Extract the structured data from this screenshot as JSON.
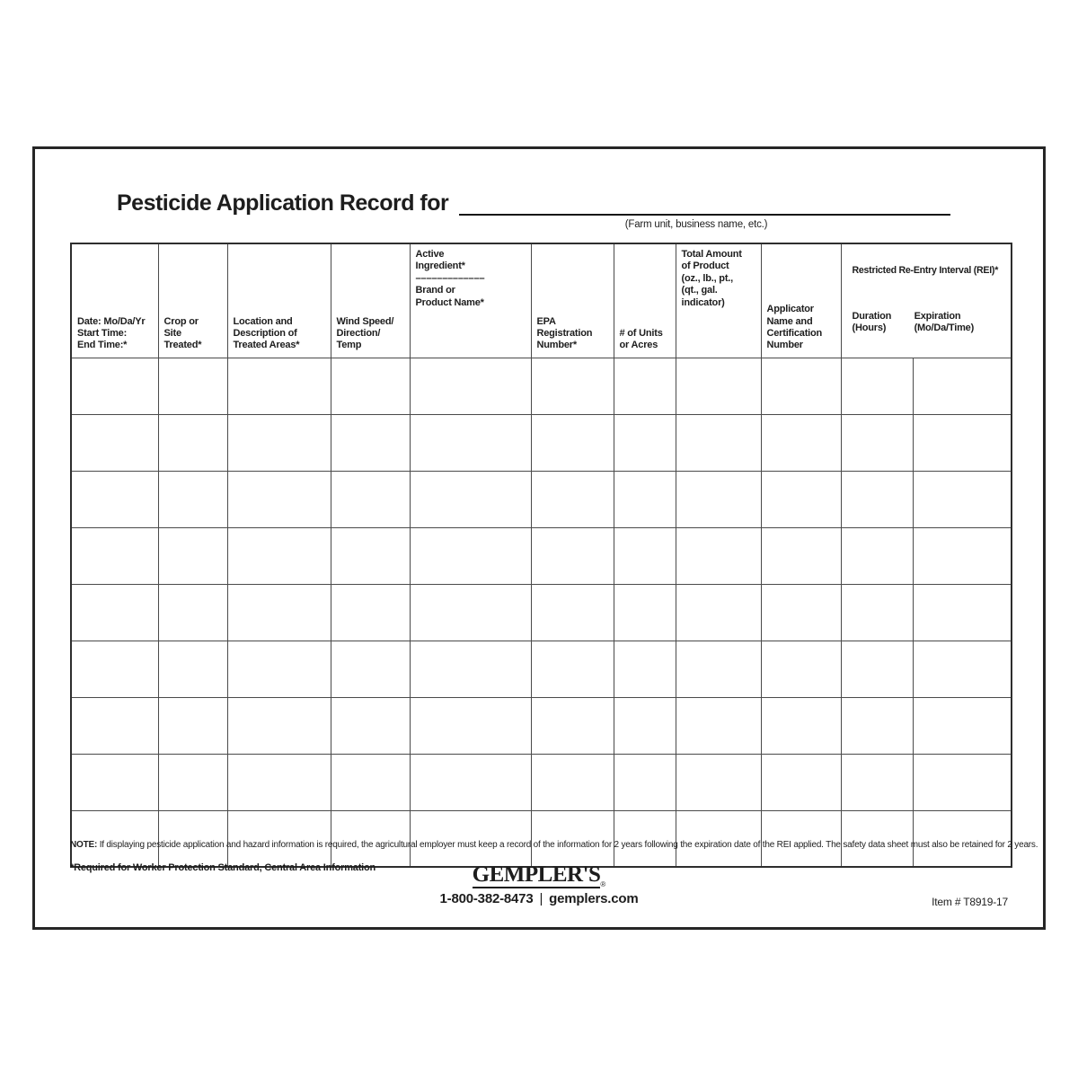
{
  "page": {
    "title": "Pesticide Application Record for",
    "blank_caption": "(Farm unit, business name, etc.)"
  },
  "table": {
    "headers": {
      "date": "Date: Mo/Da/Yr\nStart Time:\nEnd Time:*",
      "crop": "Crop or\nSite Treated*",
      "location": "Location and\nDescription of\nTreated Areas*",
      "wind": "Wind Speed/\nDirection/\nTemp",
      "active_ingredient": "Active\nIngredient*\n–––––––––––––\nBrand or\nProduct Name*",
      "epa": "EPA\nRegistration\nNumber*",
      "units": "# of Units\nor Acres",
      "total_amount": "Total Amount\nof Product\n(oz., lb., pt.,\n(qt., gal.\nindicator)",
      "applicator": "Applicator\nName and\nCertification\nNumber",
      "rei_group": "Restricted Re-Entry Interval (REI)*",
      "rei_duration": "Duration\n(Hours)",
      "rei_expiration": "Expiration\n(Mo/Da/Time)"
    },
    "body": {
      "row_count": 9,
      "column_count": 11
    }
  },
  "footer": {
    "note_label": "NOTE:",
    "note_text": " If displaying pesticide application and hazard information is required, the agricultural employer must keep a record of the information for 2 years following the expiration date of the REI applied. The safety data sheet must also be retained for 2 years.",
    "required_note": "*Required for Worker Protection Standard, Central Area Information",
    "brand": "GEMPLER'S",
    "brand_reg": "®",
    "phone": "1-800-382-8473",
    "separator": "|",
    "website": "gemplers.com",
    "item_number": "Item # T8919-17"
  }
}
